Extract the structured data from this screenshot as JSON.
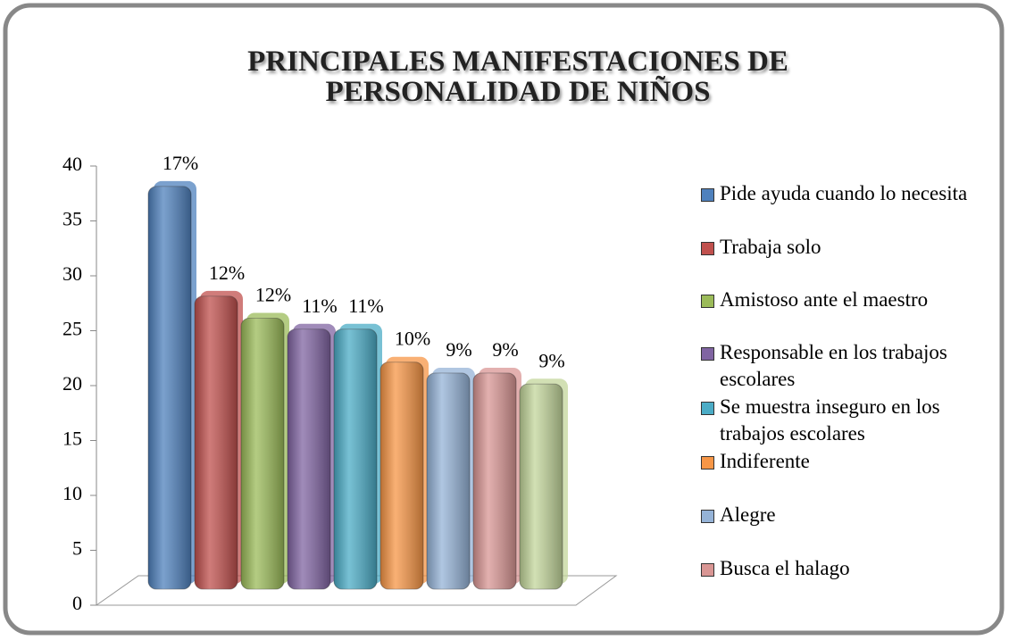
{
  "chart_data": {
    "type": "bar3d",
    "title": "PRINCIPALES MANIFESTACIONES DE PERSONALIDAD DE NIÑOS",
    "categories": [
      "Pide ayuda cuando lo necesita",
      "Trabaja solo",
      "Amistoso ante el maestro",
      "Responsable en los trabajos escolares",
      "Se muestra inseguro en los trabajos escolares",
      "Indiferente",
      "Alegre",
      "Busca el halago",
      null
    ],
    "values": [
      37,
      27,
      25,
      24,
      24,
      21,
      20,
      20,
      19
    ],
    "share_labels": [
      "17%",
      "12%",
      "12%",
      "11%",
      "11%",
      "10%",
      "9%",
      "9%",
      "9%"
    ],
    "colors": [
      "#4f81bd",
      "#c0504d",
      "#9bbb59",
      "#8064a2",
      "#4bacc6",
      "#f79646",
      "#95b3d7",
      "#d99694",
      "#c3d69b"
    ],
    "ylim": [
      0,
      40
    ],
    "yticks": [
      0,
      5,
      10,
      15,
      20,
      25,
      30,
      35,
      40
    ]
  }
}
